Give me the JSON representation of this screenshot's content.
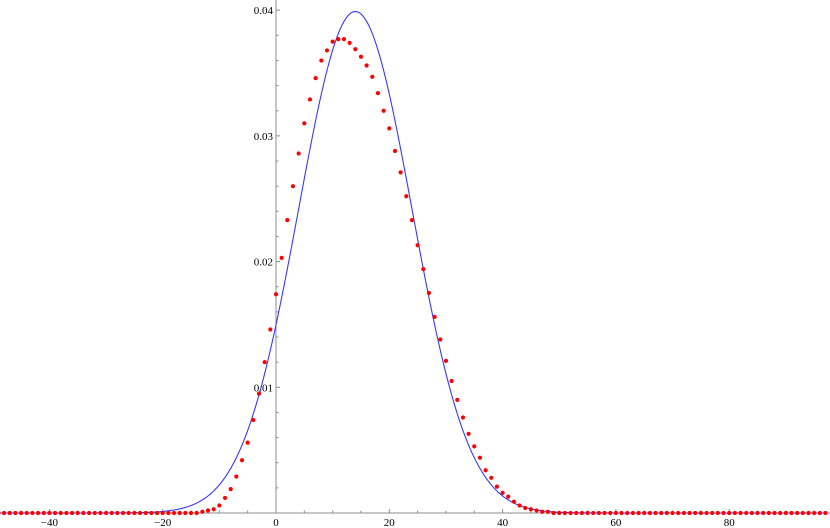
{
  "chart_data": {
    "type": "scatter",
    "title": "",
    "xlabel": "",
    "ylabel": "",
    "xlim": [
      -49,
      97
    ],
    "ylim": [
      0,
      0.0405
    ],
    "grid": false,
    "legend": null,
    "x_ticks": [
      {
        "value": -40,
        "label": "−40"
      },
      {
        "value": -20,
        "label": "−20"
      },
      {
        "value": 0,
        "label": "0"
      },
      {
        "value": 20,
        "label": "20"
      },
      {
        "value": 40,
        "label": "40"
      },
      {
        "value": 60,
        "label": "60"
      },
      {
        "value": 80,
        "label": "80"
      }
    ],
    "y_ticks": [
      {
        "value": 0.01,
        "label": "0.01"
      },
      {
        "value": 0.02,
        "label": "0.02"
      },
      {
        "value": 0.03,
        "label": "0.03"
      },
      {
        "value": 0.04,
        "label": "0.04"
      }
    ],
    "series": [
      {
        "name": "continuous density (line)",
        "kind": "line",
        "color": "#3838ff",
        "model": "normal",
        "mean": 14,
        "sd": 10,
        "peak_value": 0.0399
      },
      {
        "name": "discrete probabilities (points)",
        "kind": "points",
        "color": "#ff0000",
        "x": [
          -13,
          -12,
          -11,
          -10,
          -9,
          -8,
          -7,
          -6,
          -5,
          -4,
          -3,
          -2,
          -1,
          0,
          1,
          2,
          3,
          4,
          5,
          6,
          7,
          8,
          9,
          10,
          11,
          12,
          13,
          14,
          15,
          16,
          17,
          18,
          19,
          20,
          21,
          22,
          23,
          24,
          25,
          26,
          27,
          28,
          29,
          30,
          31,
          32,
          33,
          34,
          35,
          36,
          37,
          38,
          39,
          40,
          41,
          42,
          43,
          44,
          45,
          46,
          47,
          48
        ],
        "values": [
          0.0001,
          0.0002,
          0.0003,
          0.0006,
          0.0012,
          0.0019,
          0.0029,
          0.0042,
          0.0056,
          0.0074,
          0.0095,
          0.012,
          0.0146,
          0.0174,
          0.0203,
          0.0233,
          0.026,
          0.0286,
          0.031,
          0.0329,
          0.0346,
          0.036,
          0.0368,
          0.0375,
          0.0377,
          0.0377,
          0.0374,
          0.0369,
          0.0363,
          0.0356,
          0.0347,
          0.0334,
          0.032,
          0.0306,
          0.0288,
          0.0271,
          0.0252,
          0.0233,
          0.0213,
          0.0194,
          0.0175,
          0.0156,
          0.0138,
          0.0121,
          0.0105,
          0.009,
          0.0076,
          0.0063,
          0.0053,
          0.0044,
          0.0034,
          0.0028,
          0.0021,
          0.0016,
          0.0013,
          0.0009,
          0.0006,
          0.0004,
          0.0003,
          0.0002,
          0.0001,
          0.0001
        ],
        "zero_elsewhere_range": [
          -49,
          97
        ]
      }
    ]
  }
}
